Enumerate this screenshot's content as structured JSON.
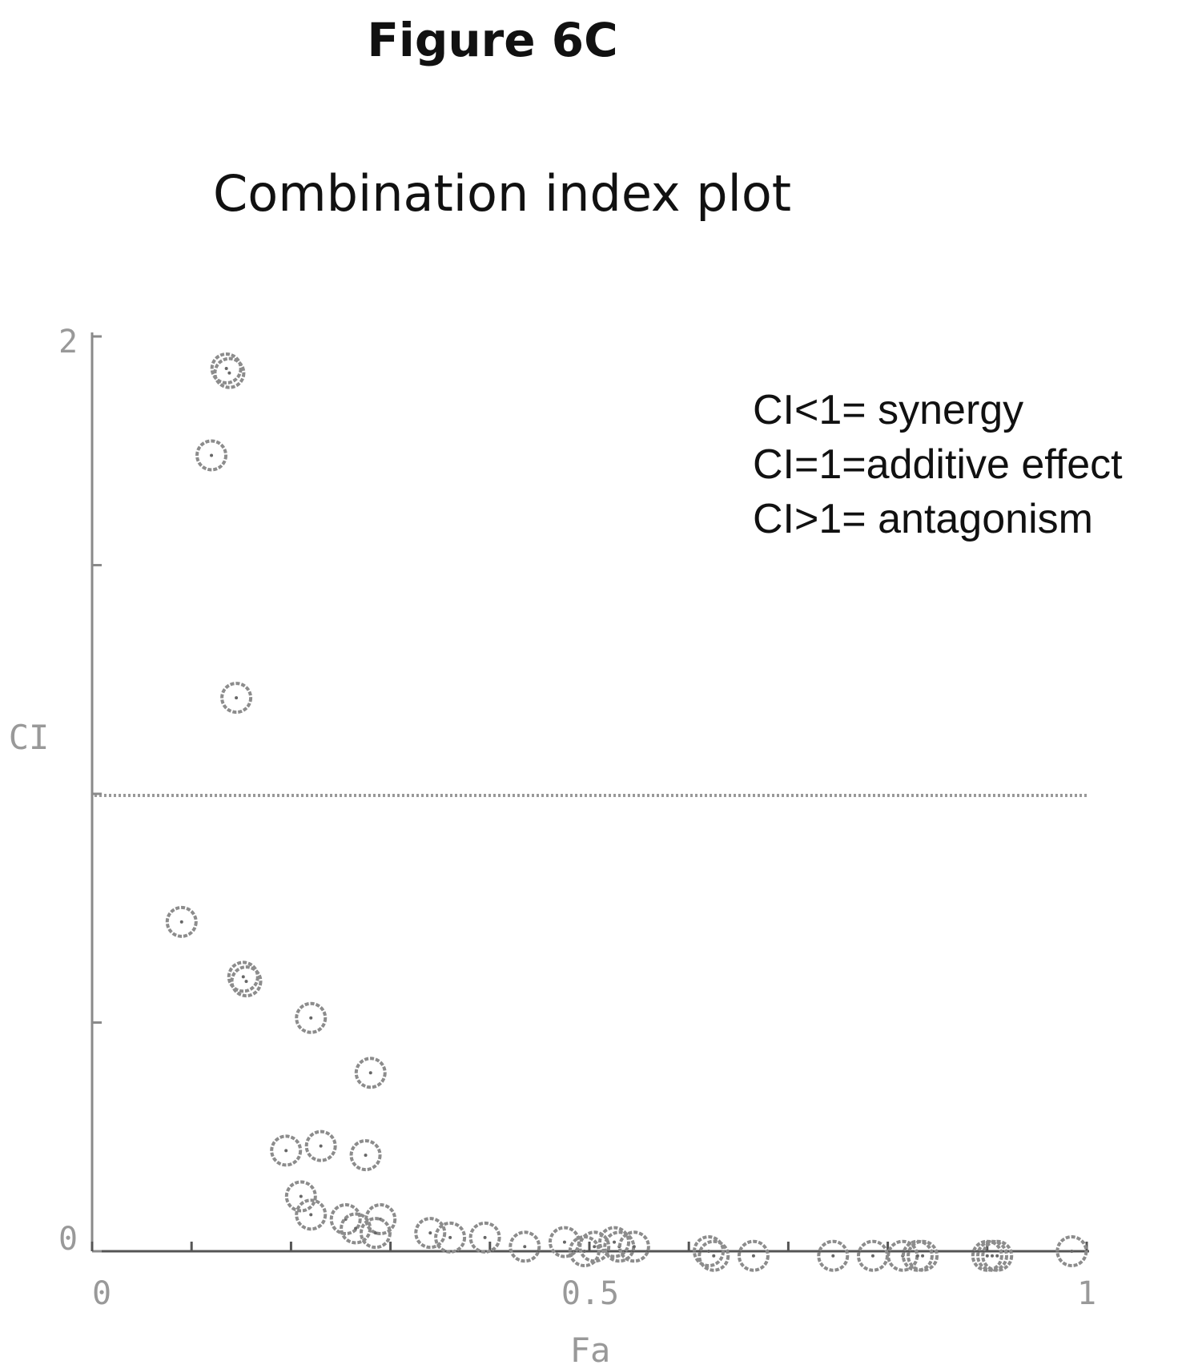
{
  "figure_label": "Figure 6C",
  "chart_data": {
    "type": "scatter",
    "title": "Combination index plot",
    "xlabel": "Fa",
    "ylabel": "CI",
    "xlim": [
      0,
      1
    ],
    "ylim": [
      0,
      2
    ],
    "x_tick_labels": [
      "0",
      "0.5",
      "1"
    ],
    "y_tick_labels": [
      "0",
      "2"
    ],
    "reference_line": {
      "y": 1,
      "style": "dotted"
    },
    "annotations": [
      "CI<1= synergy",
      "CI=1=additive effect",
      "CI>1= antagonism"
    ],
    "points": [
      {
        "x": 0.135,
        "y": 1.93
      },
      {
        "x": 0.138,
        "y": 1.92
      },
      {
        "x": 0.12,
        "y": 1.74
      },
      {
        "x": 0.145,
        "y": 1.21
      },
      {
        "x": 0.09,
        "y": 0.72
      },
      {
        "x": 0.152,
        "y": 0.6
      },
      {
        "x": 0.155,
        "y": 0.59
      },
      {
        "x": 0.22,
        "y": 0.51
      },
      {
        "x": 0.28,
        "y": 0.39
      },
      {
        "x": 0.195,
        "y": 0.22
      },
      {
        "x": 0.23,
        "y": 0.23
      },
      {
        "x": 0.275,
        "y": 0.21
      },
      {
        "x": 0.21,
        "y": 0.12
      },
      {
        "x": 0.22,
        "y": 0.08
      },
      {
        "x": 0.255,
        "y": 0.07
      },
      {
        "x": 0.265,
        "y": 0.05
      },
      {
        "x": 0.29,
        "y": 0.07
      },
      {
        "x": 0.285,
        "y": 0.04
      },
      {
        "x": 0.34,
        "y": 0.04
      },
      {
        "x": 0.36,
        "y": 0.03
      },
      {
        "x": 0.395,
        "y": 0.03
      },
      {
        "x": 0.435,
        "y": 0.01
      },
      {
        "x": 0.475,
        "y": 0.02
      },
      {
        "x": 0.495,
        "y": 0.0
      },
      {
        "x": 0.505,
        "y": 0.01
      },
      {
        "x": 0.525,
        "y": 0.02
      },
      {
        "x": 0.53,
        "y": 0.01
      },
      {
        "x": 0.545,
        "y": 0.01
      },
      {
        "x": 0.62,
        "y": 0.0
      },
      {
        "x": 0.625,
        "y": -0.01
      },
      {
        "x": 0.665,
        "y": -0.01
      },
      {
        "x": 0.745,
        "y": -0.01
      },
      {
        "x": 0.785,
        "y": -0.01
      },
      {
        "x": 0.815,
        "y": -0.01
      },
      {
        "x": 0.83,
        "y": -0.01
      },
      {
        "x": 0.835,
        "y": -0.01
      },
      {
        "x": 0.9,
        "y": -0.01
      },
      {
        "x": 0.905,
        "y": -0.01
      },
      {
        "x": 0.91,
        "y": -0.01
      },
      {
        "x": 0.985,
        "y": 0.0
      }
    ]
  }
}
